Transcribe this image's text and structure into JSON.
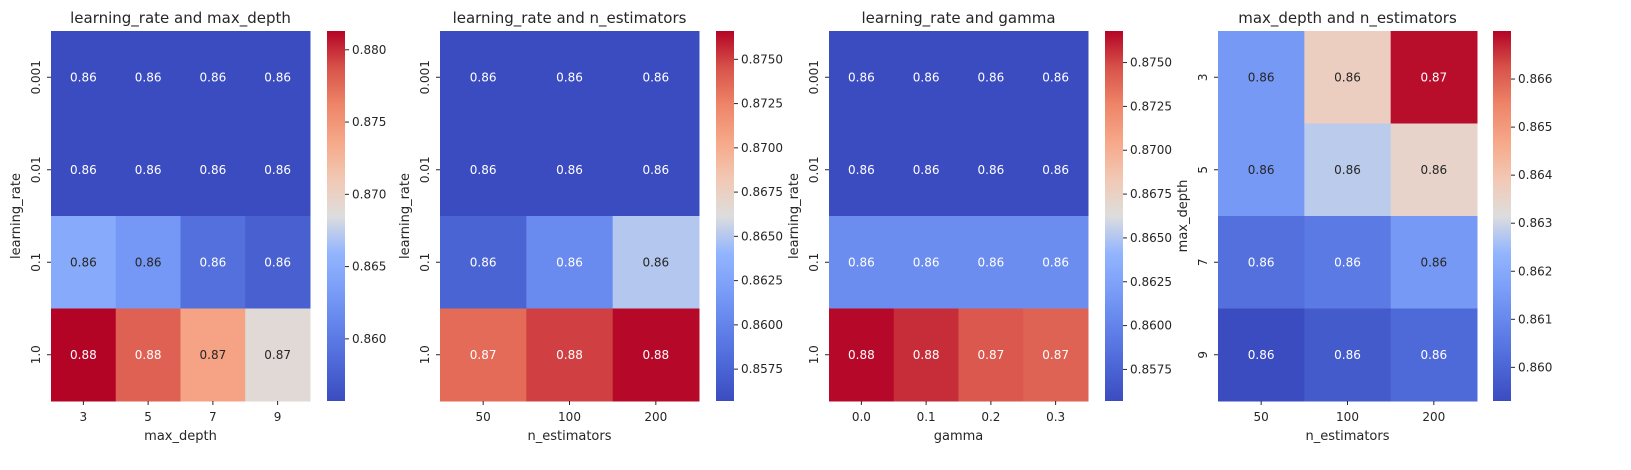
{
  "colormap": "coolwarm",
  "colors": {
    "background": "#ffffff",
    "text": "#262626",
    "cell_text_light": "#ffffff",
    "cell_text_dark": "#262626"
  },
  "chart_data": [
    {
      "type": "heatmap",
      "title": "learning_rate and max_depth",
      "xlabel": "max_depth",
      "ylabel": "learning_rate",
      "x_categories": [
        "3",
        "5",
        "7",
        "9"
      ],
      "y_categories": [
        "0.001",
        "0.01",
        "0.1",
        "1.0"
      ],
      "values": [
        [
          0.8557,
          0.8557,
          0.8557,
          0.8557
        ],
        [
          0.8557,
          0.8557,
          0.8557,
          0.8557
        ],
        [
          0.8648,
          0.8628,
          0.859,
          0.8575
        ],
        [
          0.8813,
          0.878,
          0.874,
          0.869
        ]
      ],
      "annotations": [
        [
          "0.86",
          "0.86",
          "0.86",
          "0.86"
        ],
        [
          "0.86",
          "0.86",
          "0.86",
          "0.86"
        ],
        [
          "0.86",
          "0.86",
          "0.86",
          "0.86"
        ],
        [
          "0.88",
          "0.88",
          "0.87",
          "0.87"
        ]
      ],
      "colorbar": {
        "vmin": 0.8557,
        "vmax": 0.8813,
        "ticks": [
          0.86,
          0.865,
          0.87,
          0.875,
          0.88
        ],
        "tick_labels": [
          "0.860",
          "0.865",
          "0.870",
          "0.875",
          "0.880"
        ]
      }
    },
    {
      "type": "heatmap",
      "title": "learning_rate and n_estimators",
      "xlabel": "n_estimators",
      "ylabel": "learning_rate",
      "x_categories": [
        "50",
        "100",
        "200"
      ],
      "y_categories": [
        "0.001",
        "0.01",
        "0.1",
        "1.0"
      ],
      "values": [
        [
          0.8557,
          0.8557,
          0.8557
        ],
        [
          0.8557,
          0.8557,
          0.8557
        ],
        [
          0.8575,
          0.8605,
          0.865
        ],
        [
          0.8735,
          0.875,
          0.8765
        ]
      ],
      "annotations": [
        [
          "0.86",
          "0.86",
          "0.86"
        ],
        [
          "0.86",
          "0.86",
          "0.86"
        ],
        [
          "0.86",
          "0.86",
          "0.86"
        ],
        [
          "0.87",
          "0.88",
          "0.88"
        ]
      ],
      "colorbar": {
        "vmin": 0.8557,
        "vmax": 0.8766,
        "ticks": [
          0.8575,
          0.86,
          0.8625,
          0.865,
          0.8675,
          0.87,
          0.8725,
          0.875
        ],
        "tick_labels": [
          "0.8575",
          "0.8600",
          "0.8625",
          "0.8650",
          "0.8675",
          "0.8700",
          "0.8725",
          "0.8750"
        ]
      }
    },
    {
      "type": "heatmap",
      "title": "learning_rate and gamma",
      "xlabel": "gamma",
      "ylabel": "learning_rate",
      "x_categories": [
        "0.0",
        "0.1",
        "0.2",
        "0.3"
      ],
      "y_categories": [
        "0.001",
        "0.01",
        "0.1",
        "1.0"
      ],
      "values": [
        [
          0.8557,
          0.8557,
          0.8557,
          0.8557
        ],
        [
          0.8557,
          0.8557,
          0.8557,
          0.8557
        ],
        [
          0.8608,
          0.8608,
          0.8608,
          0.8608
        ],
        [
          0.8767,
          0.8757,
          0.8745,
          0.874
        ]
      ],
      "annotations": [
        [
          "0.86",
          "0.86",
          "0.86",
          "0.86"
        ],
        [
          "0.86",
          "0.86",
          "0.86",
          "0.86"
        ],
        [
          "0.86",
          "0.86",
          "0.86",
          "0.86"
        ],
        [
          "0.88",
          "0.88",
          "0.87",
          "0.87"
        ]
      ],
      "colorbar": {
        "vmin": 0.8557,
        "vmax": 0.8768,
        "ticks": [
          0.8575,
          0.86,
          0.8625,
          0.865,
          0.8675,
          0.87,
          0.8725,
          0.875
        ],
        "tick_labels": [
          "0.8575",
          "0.8600",
          "0.8625",
          "0.8650",
          "0.8675",
          "0.8700",
          "0.8725",
          "0.8750"
        ]
      }
    },
    {
      "type": "heatmap",
      "title": "max_depth and n_estimators",
      "xlabel": "n_estimators",
      "ylabel": "max_depth",
      "x_categories": [
        "50",
        "100",
        "200"
      ],
      "y_categories": [
        "3",
        "5",
        "7",
        "9"
      ],
      "values": [
        [
          0.8615,
          0.8637,
          0.8669
        ],
        [
          0.8615,
          0.8628,
          0.8635
        ],
        [
          0.8603,
          0.8606,
          0.8615
        ],
        [
          0.8593,
          0.8597,
          0.8601
        ]
      ],
      "annotations": [
        [
          "0.86",
          "0.86",
          "0.87"
        ],
        [
          "0.86",
          "0.86",
          "0.86"
        ],
        [
          "0.86",
          "0.86",
          "0.86"
        ],
        [
          "0.86",
          "0.86",
          "0.86"
        ]
      ],
      "colorbar": {
        "vmin": 0.8593,
        "vmax": 0.867,
        "ticks": [
          0.86,
          0.861,
          0.862,
          0.863,
          0.864,
          0.865,
          0.866
        ],
        "tick_labels": [
          "0.860",
          "0.861",
          "0.862",
          "0.863",
          "0.864",
          "0.865",
          "0.866"
        ]
      }
    }
  ]
}
